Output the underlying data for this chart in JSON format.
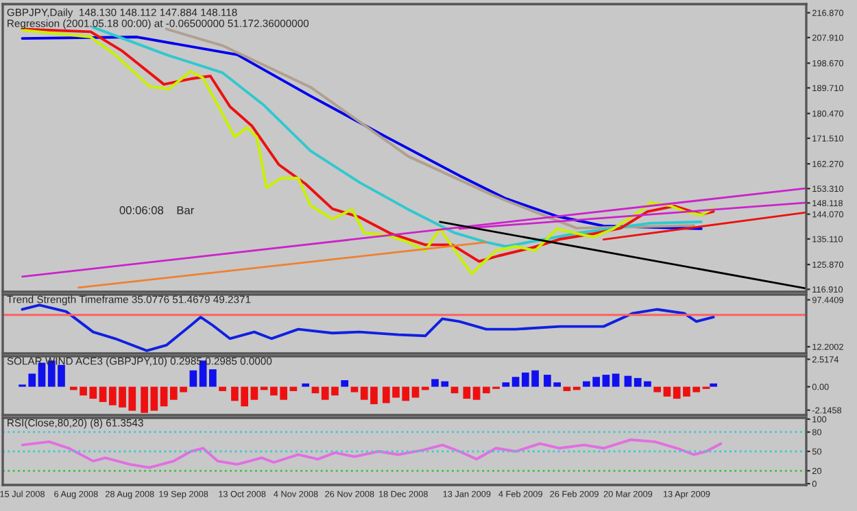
{
  "chart_data": [
    {
      "type": "line",
      "title": "GBPJPY,Daily  148.130 148.112 147.884 148.118",
      "subtitle": "Regression (2001.05.18 00:00) at -0.06500000 51.172.36000000",
      "annotations": [
        "00:06:08    Bar"
      ],
      "xlim": [
        "2008-07-07",
        "2009-06-01"
      ],
      "ylim": [
        116,
        220
      ],
      "tick_labels": "y",
      "yticks": [
        {
          "value": 216.87,
          "label": "216.870"
        },
        {
          "value": 207.91,
          "label": "207.910"
        },
        {
          "value": 198.67,
          "label": "198.670"
        },
        {
          "value": 189.71,
          "label": "189.710"
        },
        {
          "value": 180.47,
          "label": "180.470"
        },
        {
          "value": 171.51,
          "label": "171.510"
        },
        {
          "value": 162.27,
          "label": "162.270"
        },
        {
          "value": 153.31,
          "label": "153.310"
        },
        {
          "value": 148.118,
          "label": "148.118"
        },
        {
          "value": 144.07,
          "label": "144.070"
        },
        {
          "value": 135.11,
          "label": "135.110"
        },
        {
          "value": 125.87,
          "label": "125.870"
        },
        {
          "value": 116.91,
          "label": "116.910"
        }
      ],
      "xticks": [
        {
          "value": "2008-07-15",
          "label": null
        },
        {
          "value": "2008-08-06",
          "label": null
        },
        {
          "value": "2008-08-28",
          "label": null
        },
        {
          "value": "2008-09-19",
          "label": null
        },
        {
          "value": "2008-10-13",
          "label": null
        },
        {
          "value": "2008-11-04",
          "label": null
        },
        {
          "value": "2008-11-26",
          "label": null
        },
        {
          "value": "2008-12-18",
          "label": null
        },
        {
          "value": "2009-01-13",
          "label": null
        },
        {
          "value": "2009-02-04",
          "label": null
        },
        {
          "value": "2009-02-26",
          "label": null
        },
        {
          "value": "2009-03-20",
          "label": null
        },
        {
          "value": "2009-04-13",
          "label": null
        }
      ],
      "series": [
        {
          "color": "#0000ee",
          "x": [
            "2008-07-15",
            "2008-08-31",
            "2008-10-11",
            "2008-11-10",
            "2008-12-11",
            "2009-01-10",
            "2009-01-29",
            "2009-02-19",
            "2009-03-10",
            "2009-04-19"
          ],
          "values": [
            207.6,
            208.1,
            201.7,
            186.8,
            172,
            158,
            149.7,
            143.3,
            139.8,
            138.8
          ]
        },
        {
          "color": "#b0a090",
          "x": [
            "2008-09-12",
            "2008-10-05",
            "2008-11-10",
            "2008-12-20",
            "2009-01-21",
            "2009-01-29",
            "2009-02-27",
            "2009-04-16"
          ],
          "values": [
            211,
            205,
            190,
            165,
            152,
            149,
            139,
            140
          ]
        },
        {
          "color": "#30c8d0",
          "x": [
            "2008-08-13",
            "2008-09-12",
            "2008-10-05",
            "2008-10-22",
            "2008-11-10",
            "2008-11-30",
            "2008-12-20",
            "2009-01-08",
            "2009-01-21",
            "2009-01-29",
            "2009-02-28",
            "2009-03-29",
            "2009-04-19"
          ],
          "values": [
            211.6,
            201.7,
            195.2,
            183.4,
            167,
            155.6,
            145.8,
            137.3,
            133.9,
            132.4,
            137.3,
            140.8,
            141.3
          ]
        },
        {
          "color": "#ee1010",
          "x": [
            "2008-07-15",
            "2008-08-12",
            "2008-08-25",
            "2008-09-11",
            "2008-09-22",
            "2008-09-30",
            "2008-10-08",
            "2008-10-17",
            "2008-10-28",
            "2008-11-08",
            "2008-11-19",
            "2008-11-30",
            "2008-12-13",
            "2008-12-27",
            "2009-01-07",
            "2009-01-18",
            "2009-01-26",
            "2009-02-09",
            "2009-02-20",
            "2009-03-06",
            "2009-03-17",
            "2009-03-28",
            "2009-04-08",
            "2009-04-19",
            "2009-04-24"
          ],
          "values": [
            211,
            210,
            203,
            191,
            193,
            194,
            183,
            176,
            162,
            155,
            146,
            143,
            137,
            133,
            133,
            127,
            129,
            132,
            135,
            137,
            139,
            145,
            147,
            144,
            145
          ]
        },
        {
          "color": "#c8f000",
          "x": [
            "2008-07-15",
            "2008-08-12",
            "2008-08-22",
            "2008-09-05",
            "2008-09-13",
            "2008-09-22",
            "2008-09-27",
            "2008-10-04",
            "2008-10-10",
            "2008-10-15",
            "2008-10-19",
            "2008-10-23",
            "2008-10-29",
            "2008-11-05",
            "2008-11-10",
            "2008-11-19",
            "2008-11-27",
            "2008-12-02",
            "2008-12-12",
            "2008-12-20",
            "2008-12-27",
            "2009-01-02",
            "2009-01-07",
            "2009-01-15",
            "2009-01-19",
            "2009-01-25",
            "2009-02-02",
            "2009-02-10",
            "2009-02-19",
            "2009-02-26",
            "2009-03-06",
            "2009-03-14",
            "2009-03-20",
            "2009-03-26",
            "2009-03-29",
            "2009-04-06",
            "2009-04-13",
            "2009-04-19",
            "2009-04-24"
          ],
          "values": [
            210.6,
            208.1,
            201.7,
            190.3,
            189.3,
            195.7,
            193.3,
            181.9,
            172.0,
            175.4,
            172.0,
            153.7,
            157.1,
            157.1,
            147.2,
            142.3,
            145.8,
            137.3,
            136.3,
            133.9,
            130.9,
            138.8,
            132.4,
            122.5,
            126.0,
            130.9,
            132.4,
            130.9,
            138.8,
            137.3,
            135.8,
            138.8,
            142.3,
            145.8,
            148.2,
            147.2,
            144.8,
            143.8,
            146.2
          ]
        },
        {
          "color": "#cc22cc",
          "x": [
            "2008-07-15",
            "2009-06-01"
          ],
          "values": [
            121.5,
            153.4
          ]
        },
        {
          "color": "#cc22cc",
          "x": [
            "2009-01-10",
            "2009-06-01"
          ],
          "values": [
            138.8,
            148.2
          ]
        },
        {
          "color": "#ee1010",
          "x": [
            "2009-03-10",
            "2009-06-01"
          ],
          "values": [
            134.9,
            144.7
          ]
        },
        {
          "color": "#f08030",
          "x": [
            "2008-08-07",
            "2009-01-21"
          ],
          "values": [
            117.5,
            133.9
          ]
        },
        {
          "color": "#000000",
          "x": [
            "2009-01-02",
            "2009-06-01"
          ],
          "values": [
            141.3,
            117.2
          ]
        }
      ]
    },
    {
      "type": "line",
      "title": "Trend Strength Timeframe 35.0776 51.4679 49.2371",
      "xlim": [
        "2008-07-07",
        "2009-06-01"
      ],
      "ylim": [
        0,
        107
      ],
      "tick_labels": "y",
      "yticks": [
        {
          "value": 97.4409,
          "label": "97.4409"
        },
        {
          "value": 12.2002,
          "label": "12.2002"
        }
      ],
      "xticks": [
        {
          "value": "2008-07-15",
          "label": null
        },
        {
          "value": "2008-08-06",
          "label": null
        },
        {
          "value": "2008-08-28",
          "label": null
        },
        {
          "value": "2008-09-19",
          "label": null
        },
        {
          "value": "2008-10-13",
          "label": null
        },
        {
          "value": "2008-11-04",
          "label": null
        },
        {
          "value": "2008-11-26",
          "label": null
        },
        {
          "value": "2008-12-18",
          "label": null
        },
        {
          "value": "2009-01-13",
          "label": null
        },
        {
          "value": "2009-02-04",
          "label": null
        },
        {
          "value": "2009-02-26",
          "label": null
        },
        {
          "value": "2009-03-20",
          "label": null
        },
        {
          "value": "2009-04-13",
          "label": null
        }
      ],
      "ref_lines": [
        {
          "axis": "y",
          "value": 70,
          "color": "#ff6060"
        }
      ],
      "series": [
        {
          "color": "#1020e0",
          "x": [
            "2008-07-15",
            "2008-07-22",
            "2008-08-02",
            "2008-08-13",
            "2008-08-22",
            "2008-09-04",
            "2008-09-12",
            "2008-09-22",
            "2008-09-26",
            "2008-10-01",
            "2008-10-08",
            "2008-10-18",
            "2008-10-25",
            "2008-11-05",
            "2008-11-19",
            "2008-11-30",
            "2008-12-16",
            "2008-12-27",
            "2009-01-03",
            "2009-01-10",
            "2009-01-21",
            "2009-02-02",
            "2009-02-20",
            "2009-03-10",
            "2009-03-22",
            "2009-04-01",
            "2009-04-12",
            "2009-04-17",
            "2009-04-24"
          ],
          "values": [
            80,
            88,
            76,
            39,
            27,
            5,
            15,
            51,
            66,
            51,
            27,
            39,
            27,
            44,
            37,
            39,
            34,
            32,
            63,
            58,
            44,
            44,
            49,
            49,
            73,
            80,
            73,
            58,
            66
          ]
        }
      ]
    },
    {
      "type": "bar",
      "title": "SOLAR WIND ACE3 (GBPJPY,10) 0.2985 0.2985 0.0000",
      "xlim": [
        "2008-07-07",
        "2009-06-01"
      ],
      "ylim": [
        -2.6,
        2.8
      ],
      "tick_labels": "y",
      "yticks": [
        {
          "value": 2.5174,
          "label": "2.5174"
        },
        {
          "value": 0,
          "label": "0.00"
        },
        {
          "value": -2.1458,
          "label": "-2.1458"
        }
      ],
      "xticks": [
        {
          "value": "2008-07-15",
          "label": null
        },
        {
          "value": "2008-08-06",
          "label": null
        },
        {
          "value": "2008-08-28",
          "label": null
        },
        {
          "value": "2008-09-19",
          "label": null
        },
        {
          "value": "2008-10-13",
          "label": null
        },
        {
          "value": "2008-11-04",
          "label": null
        },
        {
          "value": "2008-11-26",
          "label": null
        },
        {
          "value": "2008-12-18",
          "label": null
        },
        {
          "value": "2009-01-13",
          "label": null
        },
        {
          "value": "2009-02-04",
          "label": null
        },
        {
          "value": "2009-02-26",
          "label": null
        },
        {
          "value": "2009-03-20",
          "label": null
        },
        {
          "value": "2009-04-13",
          "label": null
        }
      ],
      "series": [
        {
          "x": [
            "2008-07-15",
            "2008-07-19",
            "2008-07-23",
            "2008-07-27",
            "2008-07-31",
            "2008-08-05",
            "2008-08-09",
            "2008-08-13",
            "2008-08-17",
            "2008-08-21",
            "2008-08-25",
            "2008-08-29",
            "2008-09-03",
            "2008-09-07",
            "2008-09-11",
            "2008-09-15",
            "2008-09-19",
            "2008-09-23",
            "2008-09-27",
            "2008-10-01",
            "2008-10-05",
            "2008-10-10",
            "2008-10-14",
            "2008-10-18",
            "2008-10-22",
            "2008-10-26",
            "2008-10-30",
            "2008-11-03",
            "2008-11-08",
            "2008-11-12",
            "2008-11-16",
            "2008-11-20",
            "2008-11-24",
            "2008-11-28",
            "2008-12-02",
            "2008-12-06",
            "2008-12-11",
            "2008-12-15",
            "2008-12-19",
            "2008-12-23",
            "2008-12-27",
            "2008-12-31",
            "2009-01-04",
            "2009-01-08",
            "2009-01-13",
            "2009-01-17",
            "2009-01-21",
            "2009-01-25",
            "2009-01-29",
            "2009-02-02",
            "2009-02-06",
            "2009-02-10",
            "2009-02-15",
            "2009-02-19",
            "2009-02-23",
            "2009-02-27",
            "2009-03-03",
            "2009-03-07",
            "2009-03-11",
            "2009-03-15",
            "2009-03-20",
            "2009-03-24",
            "2009-03-28",
            "2009-04-01",
            "2009-04-05",
            "2009-04-09",
            "2009-04-13",
            "2009-04-17",
            "2009-04-21",
            "2009-04-24"
          ],
          "values": [
            0.2,
            1.2,
            2.2,
            2.4,
            2.0,
            -0.3,
            -0.8,
            -1.1,
            -1.4,
            -1.7,
            -1.9,
            -2.2,
            -2.4,
            -2.2,
            -1.8,
            -1.2,
            -0.5,
            1.5,
            2.4,
            1.6,
            -0.4,
            -1.3,
            -1.8,
            -1.2,
            -0.3,
            -0.8,
            -1.2,
            -0.4,
            0.3,
            -0.6,
            -1.2,
            -0.8,
            0.6,
            -0.5,
            -1.2,
            -1.6,
            -1.5,
            -1.0,
            -1.3,
            -1.0,
            -0.3,
            0.7,
            0.5,
            -0.6,
            -1.1,
            -1.2,
            -0.6,
            -0.2,
            0.4,
            0.9,
            1.3,
            1.5,
            1.1,
            0.4,
            -0.4,
            -0.3,
            0.5,
            0.9,
            1.1,
            1.2,
            1.0,
            0.8,
            0.5,
            -0.5,
            -0.9,
            -1.1,
            -0.9,
            -0.5,
            -0.2,
            0.3
          ],
          "colors": [
            "#1010ee",
            "#1010ee",
            "#1010ee",
            "#1010ee",
            "#1010ee",
            "#ee1010",
            "#ee1010",
            "#ee1010",
            "#ee1010",
            "#ee1010",
            "#ee1010",
            "#ee1010",
            "#ee1010",
            "#ee1010",
            "#ee1010",
            "#ee1010",
            "#ee1010",
            "#1010ee",
            "#1010ee",
            "#1010ee",
            "#ee1010",
            "#ee1010",
            "#ee1010",
            "#ee1010",
            "#ee1010",
            "#ee1010",
            "#ee1010",
            "#ee1010",
            "#1010ee",
            "#ee1010",
            "#ee1010",
            "#ee1010",
            "#1010ee",
            "#ee1010",
            "#ee1010",
            "#ee1010",
            "#ee1010",
            "#ee1010",
            "#ee1010",
            "#ee1010",
            "#ee1010",
            "#1010ee",
            "#1010ee",
            "#ee1010",
            "#ee1010",
            "#ee1010",
            "#ee1010",
            "#ee1010",
            "#1010ee",
            "#1010ee",
            "#1010ee",
            "#1010ee",
            "#1010ee",
            "#1010ee",
            "#ee1010",
            "#ee1010",
            "#1010ee",
            "#1010ee",
            "#1010ee",
            "#1010ee",
            "#1010ee",
            "#1010ee",
            "#1010ee",
            "#ee1010",
            "#ee1010",
            "#ee1010",
            "#ee1010",
            "#ee1010",
            "#ee1010",
            "#1010ee"
          ]
        }
      ]
    },
    {
      "type": "line",
      "title": "RSI(Close,80,20) (8) 61.3543",
      "xlim": [
        "2008-07-07",
        "2009-06-01"
      ],
      "ylim": [
        -2,
        102
      ],
      "yticks": [
        100,
        80,
        50,
        20,
        0
      ],
      "xticks": [
        {
          "value": "2008-07-15",
          "label": "15 Jul 2008"
        },
        {
          "value": "2008-08-06",
          "label": "6 Aug 2008"
        },
        {
          "value": "2008-08-28",
          "label": "28 Aug 2008"
        },
        {
          "value": "2008-09-19",
          "label": "19 Sep 2008"
        },
        {
          "value": "2008-10-13",
          "label": "13 Oct 2008"
        },
        {
          "value": "2008-11-04",
          "label": "4 Nov 2008"
        },
        {
          "value": "2008-11-26",
          "label": "26 Nov 2008"
        },
        {
          "value": "2008-12-18",
          "label": "18 Dec 2008"
        },
        {
          "value": "2009-01-13",
          "label": "13 Jan 2009"
        },
        {
          "value": "2009-02-04",
          "label": "4 Feb 2009"
        },
        {
          "value": "2009-02-26",
          "label": "26 Feb 2009"
        },
        {
          "value": "2009-03-20",
          "label": "20 Mar 2009"
        },
        {
          "value": "2009-04-13",
          "label": "13 Apr 2009"
        }
      ],
      "ref_lines": [
        {
          "axis": "y",
          "value": 80,
          "color": "#40c8d0",
          "line_style": "dotted"
        },
        {
          "axis": "y",
          "value": 50,
          "color": "#40c8d0",
          "line_style": "dotted"
        },
        {
          "axis": "y",
          "value": 20,
          "color": "#40c040",
          "line_style": "dotted"
        }
      ],
      "series": [
        {
          "color": "#e070e0",
          "x": [
            "2008-07-15",
            "2008-07-26",
            "2008-08-03",
            "2008-08-13",
            "2008-08-18",
            "2008-08-28",
            "2008-09-05",
            "2008-09-15",
            "2008-09-22",
            "2008-09-27",
            "2008-10-03",
            "2008-10-11",
            "2008-10-21",
            "2008-10-26",
            "2008-11-05",
            "2008-11-13",
            "2008-11-20",
            "2008-11-28",
            "2008-12-08",
            "2008-12-16",
            "2008-12-26",
            "2009-01-03",
            "2009-01-10",
            "2009-01-17",
            "2009-01-25",
            "2009-02-02",
            "2009-02-12",
            "2009-02-20",
            "2009-03-02",
            "2009-03-10",
            "2009-03-21",
            "2009-03-31",
            "2009-04-09",
            "2009-04-16",
            "2009-04-21",
            "2009-04-27"
          ],
          "values": [
            60,
            65,
            55,
            35,
            40,
            30,
            25,
            35,
            50,
            55,
            35,
            30,
            40,
            33,
            45,
            38,
            48,
            42,
            50,
            45,
            52,
            60,
            50,
            38,
            55,
            50,
            62,
            55,
            60,
            55,
            68,
            65,
            55,
            45,
            50,
            62
          ]
        }
      ]
    }
  ]
}
